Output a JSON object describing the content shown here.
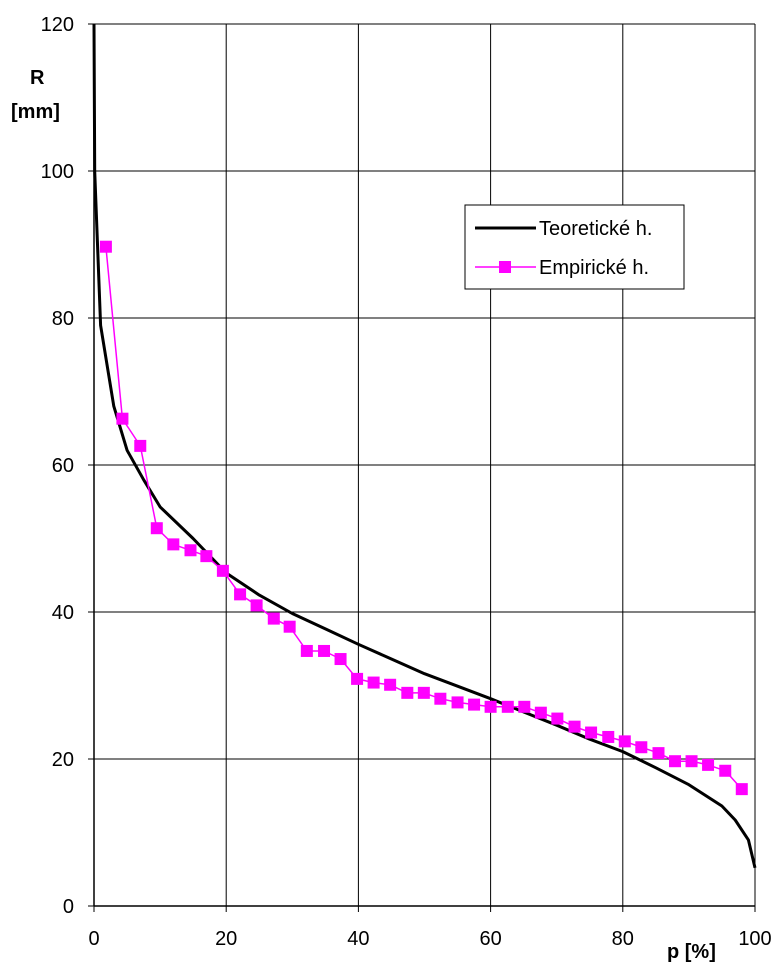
{
  "chart_data": {
    "type": "line",
    "title": "",
    "xlabel": "p [%]",
    "ylabel_line1": "R",
    "ylabel_line2": "[mm]",
    "xlim": [
      0,
      100
    ],
    "ylim": [
      0,
      120
    ],
    "xticks": [
      0,
      20,
      40,
      60,
      80,
      100
    ],
    "yticks": [
      0,
      20,
      40,
      60,
      80,
      100,
      120
    ],
    "grid": true,
    "legend_position": "right",
    "series": [
      {
        "name": "Teoretické h.",
        "color": "#000000",
        "marker": "none",
        "points": [
          [
            0,
            120
          ],
          [
            0.1,
            100
          ],
          [
            1,
            79
          ],
          [
            3,
            68
          ],
          [
            5,
            62
          ],
          [
            7.5,
            58
          ],
          [
            10,
            54.3
          ],
          [
            15,
            50
          ],
          [
            20,
            45.3
          ],
          [
            25,
            42.3
          ],
          [
            30,
            39.8
          ],
          [
            35,
            37.7
          ],
          [
            40,
            35.6
          ],
          [
            45,
            33.6
          ],
          [
            50,
            31.6
          ],
          [
            55,
            29.9
          ],
          [
            60,
            28.2
          ],
          [
            65,
            26.4
          ],
          [
            70,
            24.6
          ],
          [
            75,
            22.7
          ],
          [
            80,
            21
          ],
          [
            85,
            18.8
          ],
          [
            90,
            16.5
          ],
          [
            95,
            13.6
          ],
          [
            97,
            11.7
          ],
          [
            99,
            9
          ],
          [
            100,
            5.2
          ]
        ]
      },
      {
        "name": "Empirické h.",
        "color": "#ff00ff",
        "marker": "square",
        "points": [
          [
            1.8,
            89.7
          ],
          [
            4.3,
            66.3
          ],
          [
            7,
            62.6
          ],
          [
            9.5,
            51.4
          ],
          [
            12,
            49.2
          ],
          [
            14.6,
            48.4
          ],
          [
            17,
            47.6
          ],
          [
            19.5,
            45.6
          ],
          [
            22.1,
            42.4
          ],
          [
            24.6,
            40.9
          ],
          [
            27.2,
            39.1
          ],
          [
            29.6,
            38
          ],
          [
            32.2,
            34.7
          ],
          [
            34.8,
            34.7
          ],
          [
            37.3,
            33.6
          ],
          [
            39.8,
            30.9
          ],
          [
            42.3,
            30.4
          ],
          [
            44.8,
            30.1
          ],
          [
            47.4,
            29
          ],
          [
            49.9,
            29
          ],
          [
            52.4,
            28.2
          ],
          [
            55,
            27.7
          ],
          [
            57.5,
            27.4
          ],
          [
            60,
            27.1
          ],
          [
            62.6,
            27.1
          ],
          [
            65.1,
            27.1
          ],
          [
            67.6,
            26.3
          ],
          [
            70.1,
            25.5
          ],
          [
            72.7,
            24.4
          ],
          [
            75.2,
            23.6
          ],
          [
            77.8,
            23
          ],
          [
            80.3,
            22.4
          ],
          [
            82.8,
            21.6
          ],
          [
            85.4,
            20.8
          ],
          [
            87.9,
            19.7
          ],
          [
            90.4,
            19.7
          ],
          [
            92.9,
            19.2
          ],
          [
            95.5,
            18.4
          ],
          [
            98,
            15.9
          ]
        ]
      }
    ]
  }
}
